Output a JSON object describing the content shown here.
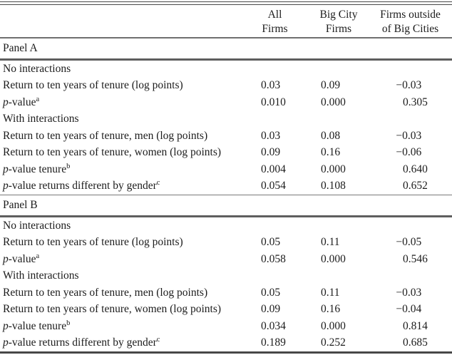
{
  "header": {
    "columns": [
      {
        "line1": "All",
        "line2": "Firms"
      },
      {
        "line1": "Big City",
        "line2": "Firms"
      },
      {
        "line1": "Firms outside",
        "line2": "of Big Cities"
      }
    ]
  },
  "panelA": {
    "label": "Panel A",
    "rows": [
      {
        "kind": "section",
        "label": "No interactions"
      },
      {
        "kind": "data",
        "label": "Return to ten years of tenure (log points)",
        "values": [
          "0.03",
          "0.09",
          "−0.03"
        ]
      },
      {
        "kind": "data",
        "italic": "p",
        "label": "-value",
        "sup": "a",
        "values": [
          "0.010",
          "0.000",
          "0.305"
        ]
      },
      {
        "kind": "section",
        "label": "With interactions"
      },
      {
        "kind": "data",
        "label": "Return to ten years of tenure, men (log points)",
        "values": [
          "0.03",
          "0.08",
          "−0.03"
        ]
      },
      {
        "kind": "data",
        "label": "Return to ten years of tenure, women (log points)",
        "values": [
          "0.09",
          "0.16",
          "−0.06"
        ]
      },
      {
        "kind": "data",
        "italic": "p",
        "label": "-value tenure",
        "sup": "b",
        "values": [
          "0.004",
          "0.000",
          "0.640"
        ]
      },
      {
        "kind": "data",
        "italic": "p",
        "label": "-value returns different by gender",
        "sup": "c",
        "values": [
          "0.054",
          "0.108",
          "0.652"
        ]
      }
    ]
  },
  "panelB": {
    "label": "Panel B",
    "rows": [
      {
        "kind": "section",
        "label": "No interactions"
      },
      {
        "kind": "data",
        "label": "Return to ten years of tenure (log points)",
        "values": [
          "0.05",
          "0.11",
          "−0.05"
        ]
      },
      {
        "kind": "data",
        "italic": "p",
        "label": "-value",
        "sup": "a",
        "values": [
          "0.058",
          "0.000",
          "0.546"
        ]
      },
      {
        "kind": "section",
        "label": "With interactions"
      },
      {
        "kind": "data",
        "label": "Return to ten years of tenure, men (log points)",
        "values": [
          "0.05",
          "0.11",
          "−0.03"
        ]
      },
      {
        "kind": "data",
        "label": "Return to ten years of tenure, women (log points)",
        "values": [
          "0.09",
          "0.16",
          "−0.04"
        ]
      },
      {
        "kind": "data",
        "italic": "p",
        "label": "-value tenure",
        "sup": "b",
        "values": [
          "0.034",
          "0.000",
          "0.814"
        ]
      },
      {
        "kind": "data",
        "italic": "p",
        "label": "-value returns different by gender",
        "sup": "c",
        "values": [
          "0.189",
          "0.252",
          "0.685"
        ]
      }
    ]
  },
  "colors": {
    "background": "#ffffff",
    "text": "#1c1c1c",
    "rule_dark": "#474747",
    "rule_gray": "#6f6f6f"
  }
}
